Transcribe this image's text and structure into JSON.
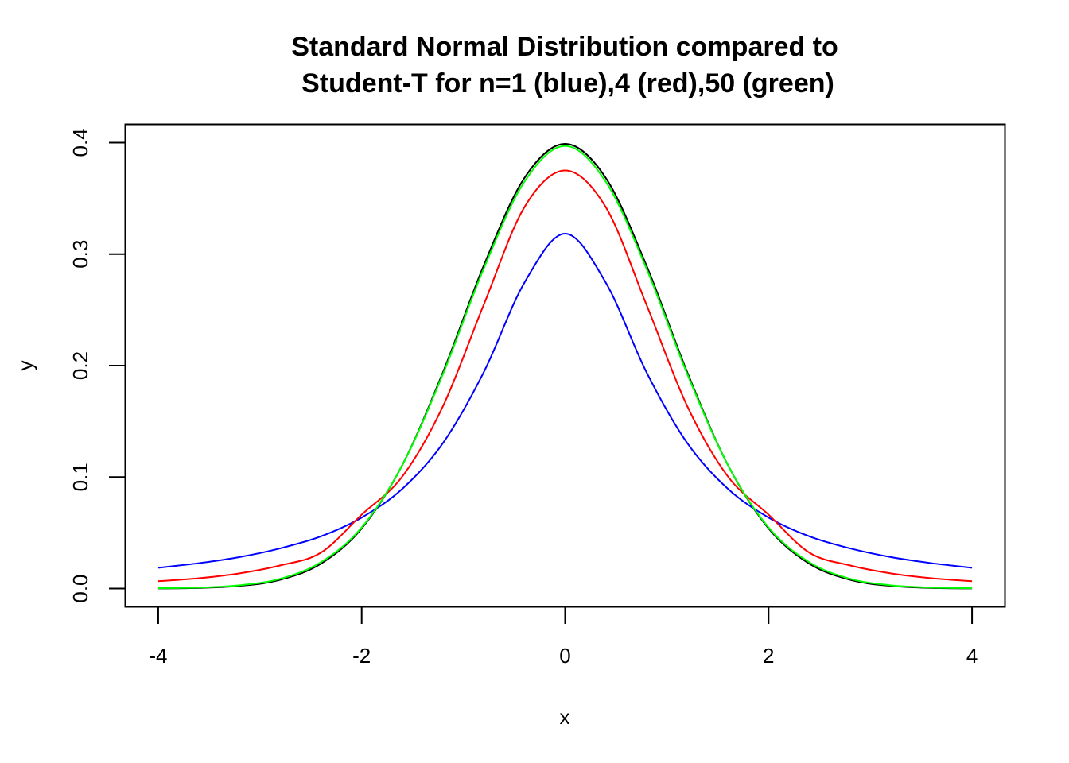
{
  "chart_data": {
    "type": "line",
    "title_lines": [
      "Standard Normal Distribution compared to",
      "Student-T for n=1 (blue),4 (red),50 (green)"
    ],
    "xlabel": "x",
    "ylabel": "y",
    "xlim": [
      -4.32,
      4.32
    ],
    "ylim": [
      -0.016,
      0.416
    ],
    "x_ticks": [
      -4,
      -2,
      0,
      2,
      4
    ],
    "x_tick_labels": [
      "-4",
      "-2",
      "0",
      "2",
      "4"
    ],
    "y_ticks": [
      0.0,
      0.1,
      0.2,
      0.3,
      0.4
    ],
    "y_tick_labels": [
      "0.0",
      "0.1",
      "0.2",
      "0.3",
      "0.4"
    ],
    "x": [
      -4.0,
      -3.6,
      -3.2,
      -2.8,
      -2.4,
      -2.0,
      -1.6,
      -1.2,
      -0.8,
      -0.4,
      0.0,
      0.4,
      0.8,
      1.2,
      1.6,
      2.0,
      2.4,
      2.8,
      3.2,
      3.6,
      4.0
    ],
    "series": [
      {
        "color": "#000000",
        "values": [
          0.0001,
          0.0006,
          0.0024,
          0.0079,
          0.0224,
          0.054,
          0.1109,
          0.1942,
          0.2897,
          0.3683,
          0.3989,
          0.3683,
          0.2897,
          0.1942,
          0.1109,
          0.054,
          0.0224,
          0.0079,
          0.0024,
          0.0006,
          0.0001
        ]
      },
      {
        "color": "#0000ff",
        "values": [
          0.0187,
          0.0228,
          0.0283,
          0.0361,
          0.0469,
          0.0637,
          0.0895,
          0.1306,
          0.1941,
          0.2744,
          0.3183,
          0.2744,
          0.1941,
          0.1306,
          0.0895,
          0.0637,
          0.0469,
          0.0361,
          0.0283,
          0.0228,
          0.0187
        ]
      },
      {
        "color": "#ff0000",
        "values": [
          0.0066,
          0.0093,
          0.0137,
          0.0208,
          0.0323,
          0.0663,
          0.1006,
          0.1638,
          0.2546,
          0.3421,
          0.375,
          0.3421,
          0.2546,
          0.1638,
          0.1006,
          0.0663,
          0.0323,
          0.0208,
          0.0137,
          0.0093,
          0.0066
        ]
      },
      {
        "color": "#00ff00",
        "values": [
          0.0003,
          0.0009,
          0.003,
          0.0088,
          0.0237,
          0.0548,
          0.1108,
          0.1926,
          0.287,
          0.3649,
          0.397,
          0.3649,
          0.287,
          0.1926,
          0.1108,
          0.0548,
          0.0237,
          0.0088,
          0.003,
          0.0009,
          0.0003
        ]
      }
    ],
    "grid": false,
    "legend": "none"
  }
}
